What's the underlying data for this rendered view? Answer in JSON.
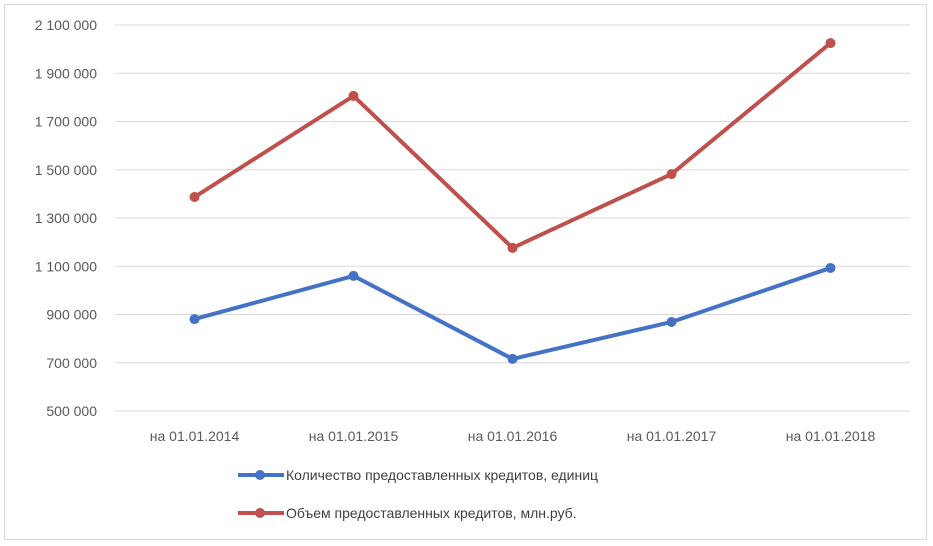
{
  "chart_data": {
    "type": "line",
    "title": "",
    "xlabel": "",
    "ylabel": "",
    "categories": [
      "на 01.01.2014",
      "на 01.01.2015",
      "на 01.01.2016",
      "на 01.01.2017",
      "на 01.01.2018"
    ],
    "ylim": [
      500000,
      2100000
    ],
    "yticks": [
      500000,
      700000,
      900000,
      1100000,
      1300000,
      1500000,
      1700000,
      1900000,
      2100000
    ],
    "ytick_labels": [
      "500 000",
      "700 000",
      "900 000",
      "1 100 000",
      "1 300 000",
      "1 500 000",
      "1 700 000",
      "1 900 000",
      "2 100 000"
    ],
    "grid": true,
    "legend_position": "bottom",
    "series": [
      {
        "name": "Количество предоставленных кредитов, единиц",
        "color": "#4472c4",
        "values": [
          881000,
          1060000,
          716000,
          869000,
          1093000
        ]
      },
      {
        "name": "Объем предоставленных кредитов, млн.руб.",
        "color": "#c0504d",
        "values": [
          1387000,
          1806000,
          1176000,
          1482000,
          2025000
        ]
      }
    ]
  }
}
